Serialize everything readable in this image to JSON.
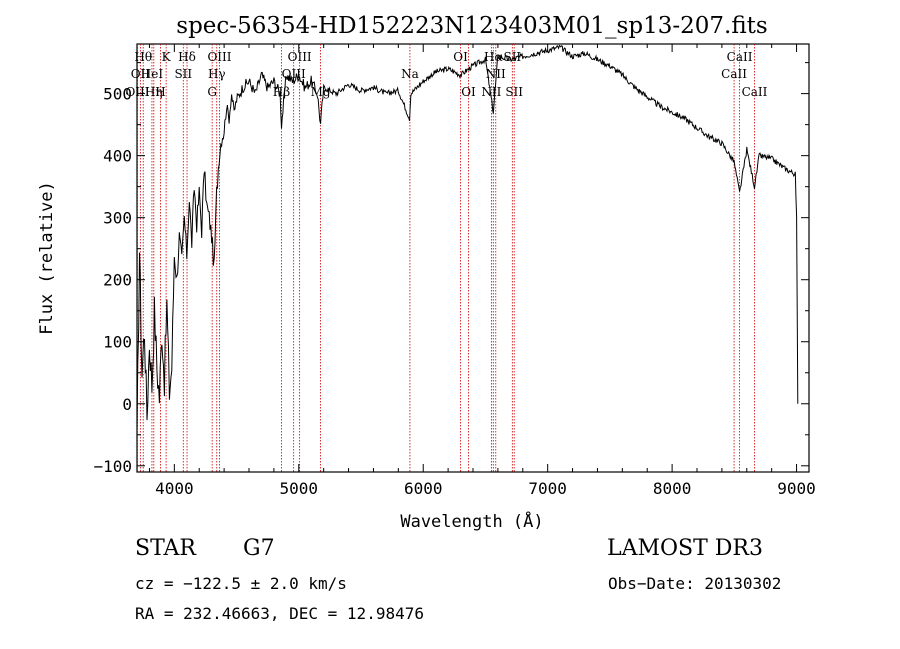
{
  "chart_data": {
    "type": "line",
    "title": "spec-56354-HD152223N123403M01_sp13-207.fits",
    "xlabel": "Wavelength (Å)",
    "ylabel": "Flux (relative)",
    "xlim": [
      3700,
      9100
    ],
    "ylim": [
      -110,
      580
    ],
    "xticks": [
      4000,
      5000,
      6000,
      7000,
      8000,
      9000
    ],
    "yticks": [
      -100,
      0,
      100,
      200,
      300,
      400,
      500
    ],
    "series": [
      {
        "name": "flux",
        "x": [
          3700,
          3720,
          3740,
          3760,
          3780,
          3800,
          3820,
          3840,
          3860,
          3880,
          3900,
          3920,
          3940,
          3960,
          3980,
          4000,
          4020,
          4040,
          4060,
          4080,
          4100,
          4120,
          4140,
          4160,
          4180,
          4200,
          4220,
          4240,
          4260,
          4280,
          4300,
          4320,
          4340,
          4360,
          4380,
          4400,
          4420,
          4440,
          4460,
          4480,
          4500,
          4550,
          4600,
          4650,
          4700,
          4750,
          4800,
          4850,
          4861,
          4900,
          4950,
          5000,
          5050,
          5100,
          5150,
          5175,
          5200,
          5300,
          5400,
          5500,
          5600,
          5700,
          5800,
          5890,
          5900,
          6000,
          6100,
          6200,
          6300,
          6400,
          6500,
          6563,
          6600,
          6700,
          6800,
          6900,
          7000,
          7100,
          7200,
          7300,
          7400,
          7500,
          7600,
          7700,
          7800,
          7900,
          8000,
          8100,
          8200,
          8300,
          8400,
          8498,
          8542,
          8600,
          8662,
          8700,
          8800,
          8900,
          8990,
          9000,
          9010
        ],
        "values": [
          -60,
          250,
          50,
          120,
          -20,
          100,
          30,
          150,
          60,
          10,
          120,
          40,
          160,
          20,
          60,
          240,
          200,
          270,
          230,
          300,
          240,
          330,
          260,
          350,
          290,
          340,
          280,
          380,
          320,
          300,
          270,
          220,
          340,
          400,
          430,
          440,
          480,
          460,
          500,
          470,
          490,
          510,
          520,
          500,
          530,
          510,
          520,
          500,
          450,
          530,
          520,
          530,
          510,
          520,
          500,
          450,
          510,
          500,
          515,
          505,
          510,
          500,
          505,
          460,
          500,
          520,
          535,
          540,
          530,
          545,
          555,
          470,
          560,
          555,
          560,
          565,
          570,
          575,
          560,
          565,
          555,
          545,
          530,
          510,
          495,
          480,
          470,
          460,
          445,
          430,
          420,
          390,
          340,
          410,
          350,
          400,
          395,
          380,
          370,
          300,
          0
        ]
      }
    ],
    "lines": [
      {
        "wl": 3704,
        "label": "OIII",
        "row": 3
      },
      {
        "wl": 3727,
        "label": "OII",
        "row": 2
      },
      {
        "wl": 3750,
        "label": "Hθ",
        "row": 1
      },
      {
        "wl": 3820,
        "label": "HeI",
        "row": 2
      },
      {
        "wl": 3835,
        "label": "Hη",
        "row": 3
      },
      {
        "wl": 3889,
        "label": "H",
        "row": 3
      },
      {
        "wl": 3934,
        "label": "K",
        "row": 1
      },
      {
        "wl": 4072,
        "label": "SII",
        "row": 2
      },
      {
        "wl": 4102,
        "label": "Hδ",
        "row": 1
      },
      {
        "wl": 4304,
        "label": "G",
        "row": 3
      },
      {
        "wl": 4341,
        "label": "Hγ",
        "row": 2
      },
      {
        "wl": 4363,
        "label": "OIII",
        "row": 1
      },
      {
        "wl": 4861,
        "label": "Hβ",
        "row": 3
      },
      {
        "wl": 4959,
        "label": "OIII",
        "row": 2
      },
      {
        "wl": 5007,
        "label": "OIII",
        "row": 1
      },
      {
        "wl": 5175,
        "label": "Mg",
        "row": 3
      },
      {
        "wl": 5893,
        "label": "Na",
        "row": 2
      },
      {
        "wl": 6300,
        "label": "OI",
        "row": 1
      },
      {
        "wl": 6364,
        "label": "OI",
        "row": 3
      },
      {
        "wl": 6548,
        "label": "NII",
        "row": 3
      },
      {
        "wl": 6563,
        "label": "Hα",
        "row": 1
      },
      {
        "wl": 6583,
        "label": "NII",
        "row": 2
      },
      {
        "wl": 6716,
        "label": "SII",
        "row": 1
      },
      {
        "wl": 6731,
        "label": "SII",
        "row": 3
      },
      {
        "wl": 8498,
        "label": "CaII",
        "row": 2
      },
      {
        "wl": 8542,
        "label": "CaII",
        "row": 1
      },
      {
        "wl": 8662,
        "label": "CaII",
        "row": 3
      }
    ],
    "grid": false,
    "line_color": "#000000",
    "marker_line_color": "#cc0000"
  },
  "info": {
    "object_type": "STAR",
    "subclass": "G7",
    "survey": "LAMOST DR3",
    "redshift": "cz = −122.5 ± 2.0 km/s",
    "obs_date": "Obs−Date: 20130302",
    "coords": "RA = 232.46663, DEC =  12.98476"
  }
}
